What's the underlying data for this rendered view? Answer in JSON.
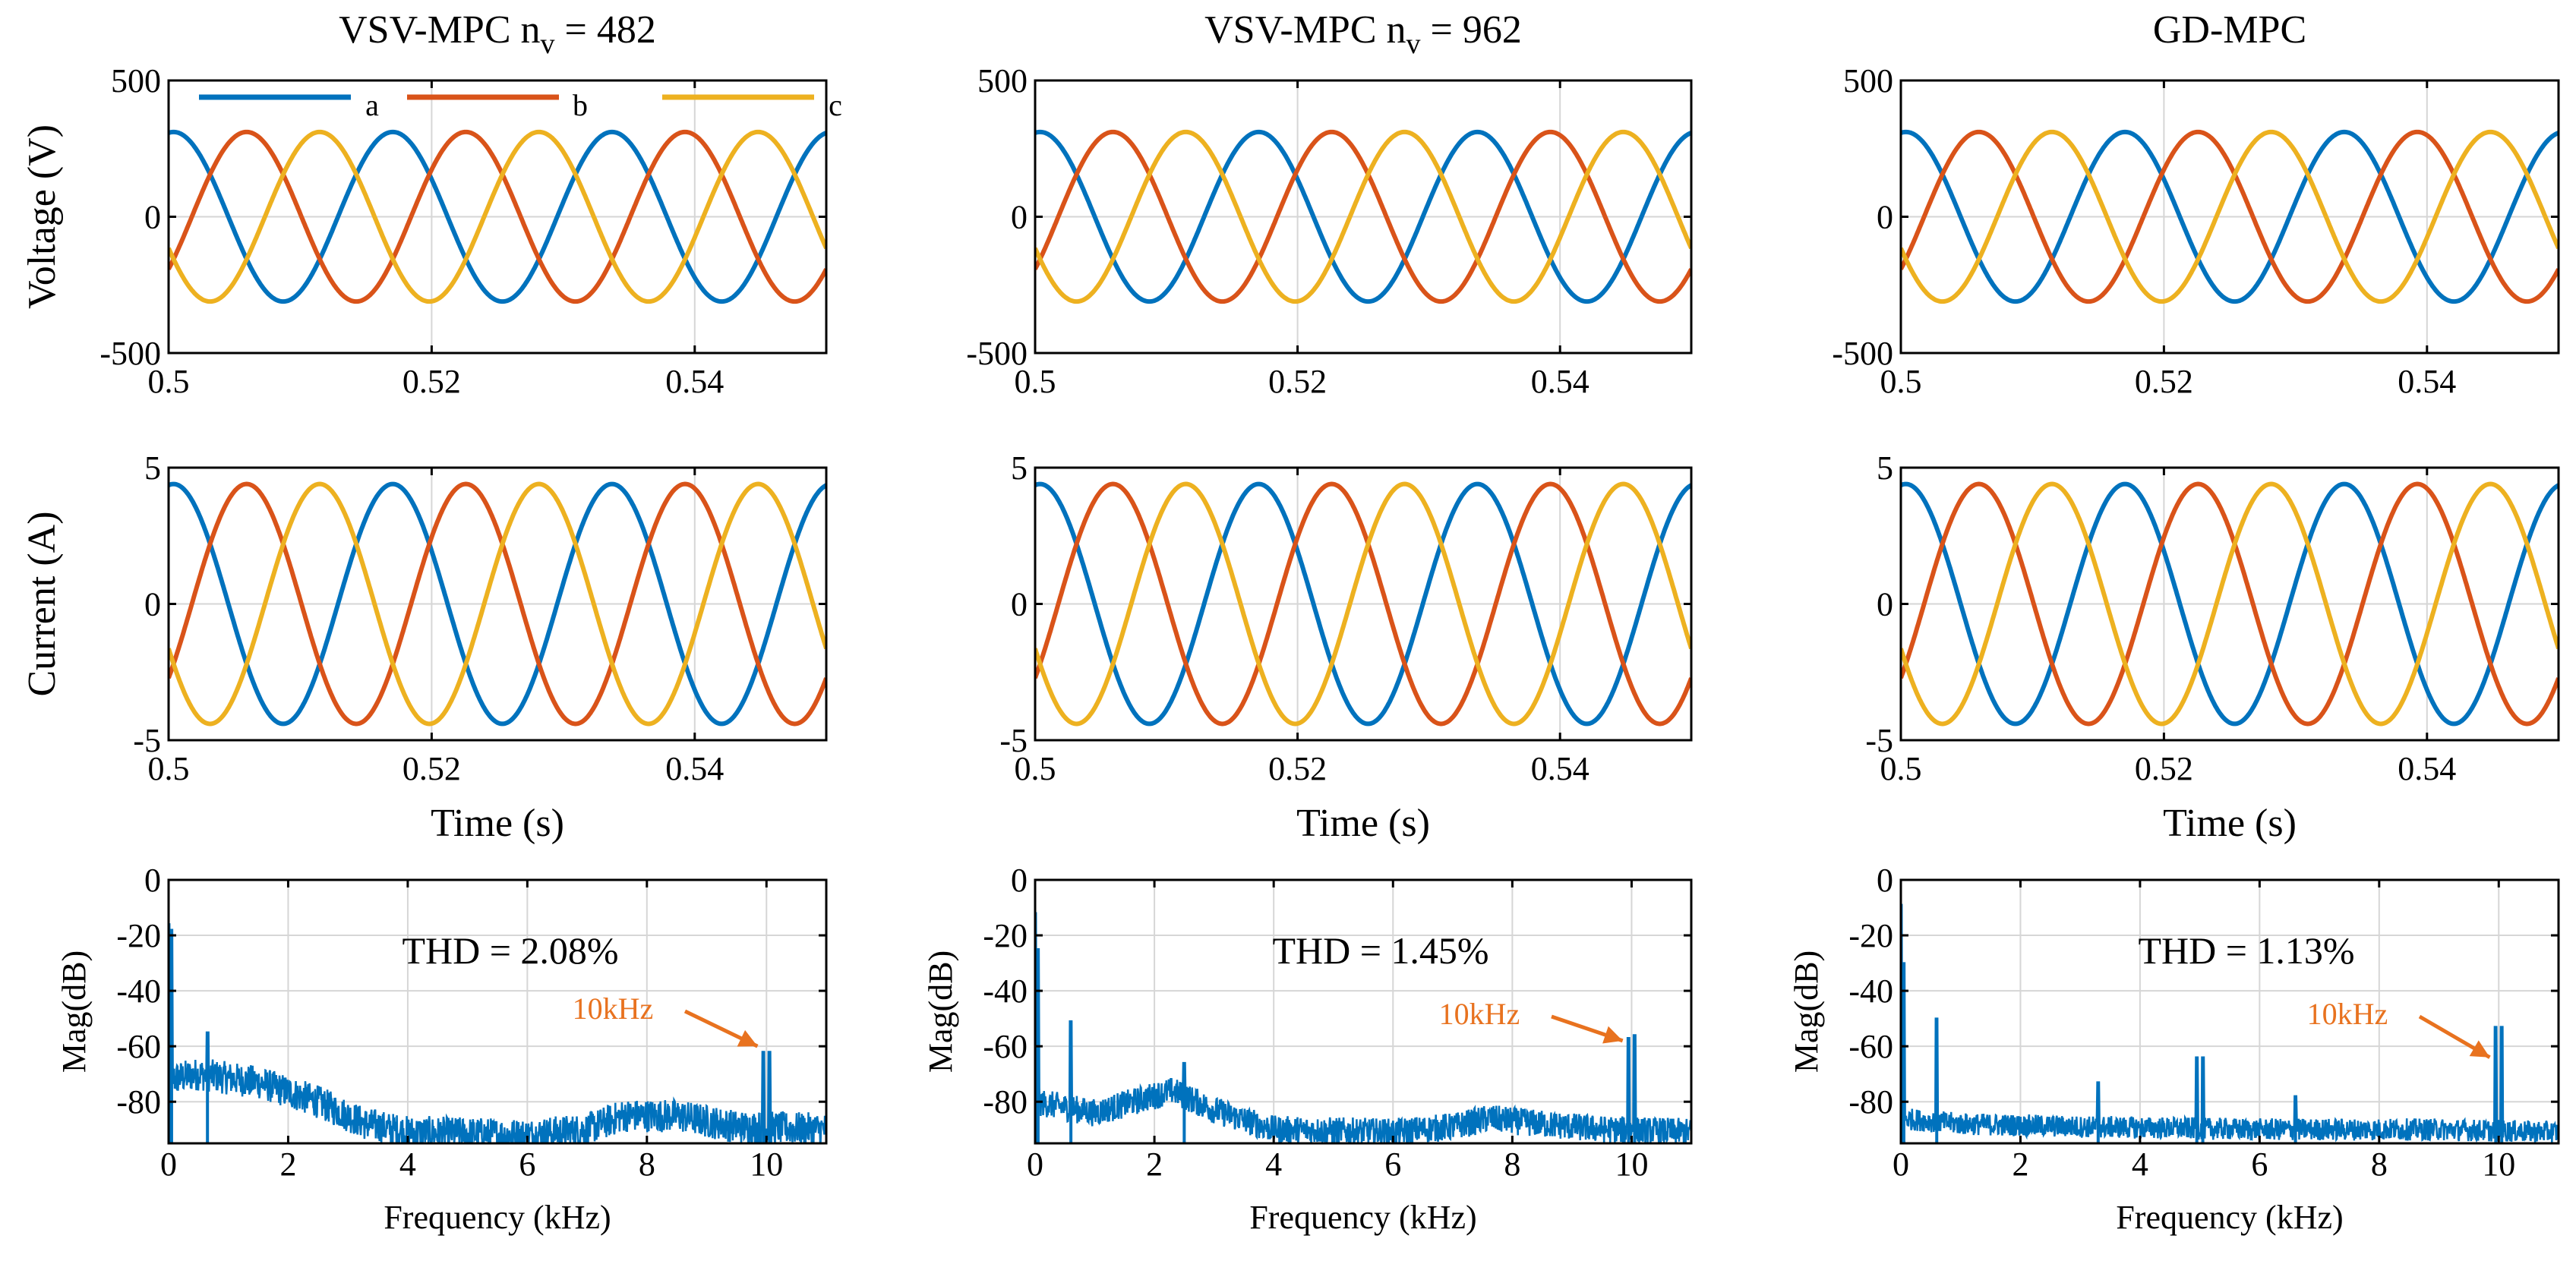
{
  "colors": {
    "a": "#0072BD",
    "b": "#D95319",
    "c": "#EDB120",
    "annotation": "#E8721F"
  },
  "chart_data": [
    {
      "type": "line",
      "panel": "voltage",
      "column": 0,
      "title": "VSV-MPC   n",
      "title_sub": "v",
      "title_tail": " = 482",
      "ylabel": "Voltage (V)",
      "xlabel": "",
      "xlim": [
        0.5,
        0.55
      ],
      "ylim": [
        -500,
        500
      ],
      "xticks": [
        0.5,
        0.52,
        0.54
      ],
      "xtick_labels": [
        "0.5",
        "0.52",
        "0.54"
      ],
      "yticks": [
        -500,
        0,
        500
      ],
      "ytick_labels": [
        "-500",
        "0",
        "500"
      ],
      "amplitude": 311,
      "frequency_hz": 60,
      "series": [
        {
          "name": "a"
        },
        {
          "name": "b"
        },
        {
          "name": "c"
        }
      ],
      "legend": [
        "a",
        "b",
        "c"
      ]
    },
    {
      "type": "line",
      "panel": "voltage",
      "column": 1,
      "title": "VSV-MPC   n",
      "title_sub": "v",
      "title_tail": " = 962",
      "ylabel": "",
      "xlabel": "",
      "xlim": [
        0.5,
        0.55
      ],
      "ylim": [
        -500,
        500
      ],
      "xticks": [
        0.5,
        0.52,
        0.54
      ],
      "xtick_labels": [
        "0.5",
        "0.52",
        "0.54"
      ],
      "yticks": [
        -500,
        0,
        500
      ],
      "ytick_labels": [
        "-500",
        "0",
        "500"
      ],
      "amplitude": 311,
      "frequency_hz": 60,
      "series": [
        {
          "name": "a"
        },
        {
          "name": "b"
        },
        {
          "name": "c"
        }
      ]
    },
    {
      "type": "line",
      "panel": "voltage",
      "column": 2,
      "title": "GD-MPC",
      "ylabel": "",
      "xlabel": "",
      "xlim": [
        0.5,
        0.55
      ],
      "ylim": [
        -500,
        500
      ],
      "xticks": [
        0.5,
        0.52,
        0.54
      ],
      "xtick_labels": [
        "0.5",
        "0.52",
        "0.54"
      ],
      "yticks": [
        -500,
        0,
        500
      ],
      "ytick_labels": [
        "-500",
        "0",
        "500"
      ],
      "amplitude": 311,
      "frequency_hz": 60,
      "series": [
        {
          "name": "a"
        },
        {
          "name": "b"
        },
        {
          "name": "c"
        }
      ]
    },
    {
      "type": "line",
      "panel": "current",
      "column": 0,
      "ylabel": "Current (A)",
      "xlabel": "Time (s)",
      "xlim": [
        0.5,
        0.55
      ],
      "ylim": [
        -5,
        5
      ],
      "xticks": [
        0.5,
        0.52,
        0.54
      ],
      "xtick_labels": [
        "0.5",
        "0.52",
        "0.54"
      ],
      "yticks": [
        -5,
        0,
        5
      ],
      "ytick_labels": [
        "-5",
        "0",
        "5"
      ],
      "amplitude": 4.4,
      "frequency_hz": 60,
      "series": [
        {
          "name": "a"
        },
        {
          "name": "b"
        },
        {
          "name": "c"
        }
      ]
    },
    {
      "type": "line",
      "panel": "current",
      "column": 1,
      "ylabel": "",
      "xlabel": "Time (s)",
      "xlim": [
        0.5,
        0.55
      ],
      "ylim": [
        -5,
        5
      ],
      "xticks": [
        0.5,
        0.52,
        0.54
      ],
      "xtick_labels": [
        "0.5",
        "0.52",
        "0.54"
      ],
      "yticks": [
        -5,
        0,
        5
      ],
      "ytick_labels": [
        "-5",
        "0",
        "5"
      ],
      "amplitude": 4.4,
      "frequency_hz": 60,
      "series": [
        {
          "name": "a"
        },
        {
          "name": "b"
        },
        {
          "name": "c"
        }
      ]
    },
    {
      "type": "line",
      "panel": "current",
      "column": 2,
      "ylabel": "",
      "xlabel": "Time (s)",
      "xlim": [
        0.5,
        0.55
      ],
      "ylim": [
        -5,
        5
      ],
      "xticks": [
        0.5,
        0.52,
        0.54
      ],
      "xtick_labels": [
        "0.5",
        "0.52",
        "0.54"
      ],
      "yticks": [
        -5,
        0,
        5
      ],
      "ytick_labels": [
        "-5",
        "0",
        "5"
      ],
      "amplitude": 4.4,
      "frequency_hz": 60,
      "series": [
        {
          "name": "a"
        },
        {
          "name": "b"
        },
        {
          "name": "c"
        }
      ]
    },
    {
      "type": "line",
      "panel": "spectrum",
      "column": 0,
      "ylabel": "Mag(dB)",
      "xlabel": "Frequency (kHz)",
      "xlim": [
        0,
        11
      ],
      "ylim": [
        -95,
        0
      ],
      "xticks": [
        0,
        2,
        4,
        6,
        8,
        10
      ],
      "xtick_labels": [
        "0",
        "2",
        "4",
        "6",
        "8",
        "10"
      ],
      "yticks": [
        -80,
        -60,
        -40,
        -20,
        0
      ],
      "ytick_labels": [
        "-80",
        "-60",
        "-40",
        "-20",
        "0"
      ],
      "thd": "THD = 2.08%",
      "annotation": "10kHz",
      "profile": [
        [
          0,
          -72
        ],
        [
          0.5,
          -70
        ],
        [
          1.5,
          -73
        ],
        [
          2.5,
          -80
        ],
        [
          3.3,
          -88
        ],
        [
          4,
          -91
        ],
        [
          6,
          -92
        ],
        [
          7,
          -90
        ],
        [
          7.6,
          -85
        ],
        [
          8.5,
          -85
        ],
        [
          9.5,
          -89
        ],
        [
          11,
          -90
        ]
      ],
      "noise_amp": 6,
      "peaks": [
        [
          0,
          -16
        ],
        [
          0.05,
          -18
        ],
        [
          0.65,
          -55
        ],
        [
          9.95,
          -62
        ],
        [
          10.05,
          -62
        ]
      ]
    },
    {
      "type": "line",
      "panel": "spectrum",
      "column": 1,
      "ylabel": "Mag(dB)",
      "xlabel": "Frequency (kHz)",
      "xlim": [
        0,
        11
      ],
      "ylim": [
        -95,
        0
      ],
      "xticks": [
        0,
        2,
        4,
        6,
        8,
        10
      ],
      "xtick_labels": [
        "0",
        "2",
        "4",
        "6",
        "8",
        "10"
      ],
      "yticks": [
        -80,
        -60,
        -40,
        -20,
        0
      ],
      "ytick_labels": [
        "-80",
        "-60",
        "-40",
        "-20",
        "0"
      ],
      "thd": "THD = 1.45%",
      "annotation": "10kHz",
      "profile": [
        [
          0,
          -80
        ],
        [
          1,
          -84
        ],
        [
          2.3,
          -76
        ],
        [
          3,
          -83
        ],
        [
          4,
          -90
        ],
        [
          6,
          -91
        ],
        [
          7,
          -89
        ],
        [
          7.6,
          -86
        ],
        [
          8.5,
          -88
        ],
        [
          9.5,
          -90
        ],
        [
          11,
          -91
        ]
      ],
      "noise_amp": 5,
      "peaks": [
        [
          0,
          -12
        ],
        [
          0.05,
          -25
        ],
        [
          0.6,
          -51
        ],
        [
          2.5,
          -66
        ],
        [
          9.95,
          -57
        ],
        [
          10.05,
          -56
        ]
      ]
    },
    {
      "type": "line",
      "panel": "spectrum",
      "column": 2,
      "ylabel": "Mag(dB)",
      "xlabel": "Frequency (kHz)",
      "xlim": [
        0,
        11
      ],
      "ylim": [
        -95,
        0
      ],
      "xticks": [
        0,
        2,
        4,
        6,
        8,
        10
      ],
      "xtick_labels": [
        "0",
        "2",
        "4",
        "6",
        "8",
        "10"
      ],
      "yticks": [
        -80,
        -60,
        -40,
        -20,
        0
      ],
      "ytick_labels": [
        "-80",
        "-60",
        "-40",
        "-20",
        "0"
      ],
      "thd": "THD = 1.13%",
      "annotation": "10kHz",
      "profile": [
        [
          0,
          -86
        ],
        [
          1,
          -88
        ],
        [
          3,
          -89
        ],
        [
          6,
          -90
        ],
        [
          9,
          -90
        ],
        [
          11,
          -91
        ]
      ],
      "noise_amp": 4,
      "peaks": [
        [
          0,
          -9
        ],
        [
          0.05,
          -30
        ],
        [
          0.6,
          -50
        ],
        [
          3.3,
          -73
        ],
        [
          4.95,
          -64
        ],
        [
          5.05,
          -64
        ],
        [
          6.6,
          -78
        ],
        [
          9.95,
          -53
        ],
        [
          10.05,
          -53
        ]
      ]
    }
  ]
}
